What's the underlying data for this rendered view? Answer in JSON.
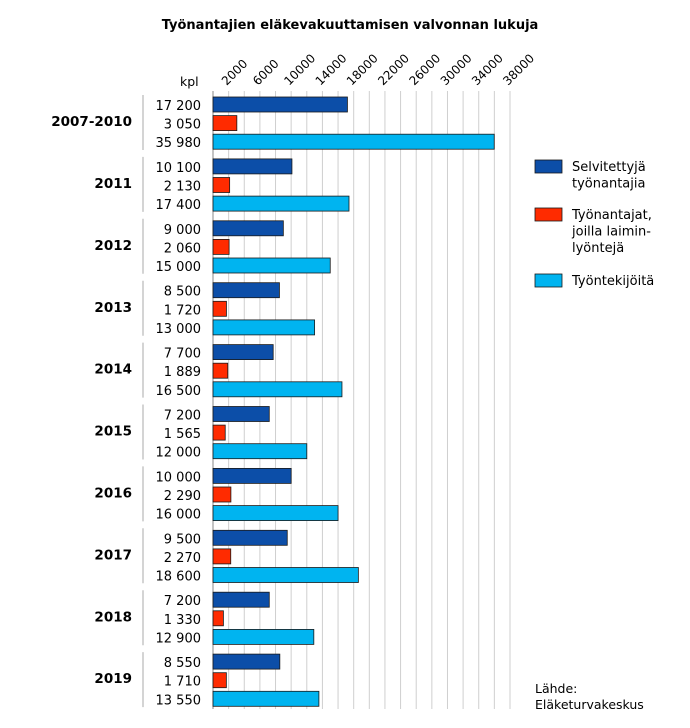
{
  "chart_data": {
    "type": "bar",
    "orientation": "horizontal",
    "title": "Työnantajien eläkevakuuttamisen valvonnan lukuja",
    "unit_label": "kpl",
    "x_ticks": [
      2000,
      6000,
      10000,
      14000,
      18000,
      22000,
      26000,
      30000,
      34000,
      38000
    ],
    "xlim": [
      0,
      38000
    ],
    "grid": true,
    "legend_position": "right",
    "categories": [
      "2007-2010",
      "2011",
      "2012",
      "2013",
      "2014",
      "2015",
      "2016",
      "2017",
      "2018",
      "2019"
    ],
    "series": [
      {
        "name": "Selvitettyjä työnantajia",
        "legend_lines": [
          "Selvitettyjä",
          "työnantajia"
        ],
        "color": "#0c4ea8",
        "values": [
          17200,
          10100,
          9000,
          8500,
          7700,
          7200,
          10000,
          9500,
          7200,
          8550
        ],
        "labels": [
          "17 200",
          "10 100",
          "9 000",
          "8 500",
          "7 700",
          "7 200",
          "10 000",
          "9 500",
          "7 200",
          "8 550"
        ]
      },
      {
        "name": "Työnantajat, joilla laiminlyöntejä",
        "legend_lines": [
          "Työnantajat,",
          "joilla laimin-",
          "lyöntejä"
        ],
        "color": "#ff2b00",
        "values": [
          3050,
          2130,
          2060,
          1720,
          1889,
          1565,
          2290,
          2270,
          1330,
          1710
        ],
        "labels": [
          "3 050",
          "2 130",
          "2 060",
          "1 720",
          "1 889",
          "1 565",
          "2 290",
          "2 270",
          "1 330",
          "1 710"
        ]
      },
      {
        "name": "Työntekijöitä",
        "legend_lines": [
          "Työntekijöitä"
        ],
        "color": "#00b4f0",
        "values": [
          35980,
          17400,
          15000,
          13000,
          16500,
          12000,
          16000,
          18600,
          12900,
          13550
        ],
        "labels": [
          "35 980",
          "17 400",
          "15 000",
          "13 000",
          "16 500",
          "12 000",
          "16 000",
          "18 600",
          "12 900",
          "13 550"
        ]
      }
    ],
    "source_lines": [
      "Lähde:",
      "Eläketurvakeskus"
    ]
  }
}
